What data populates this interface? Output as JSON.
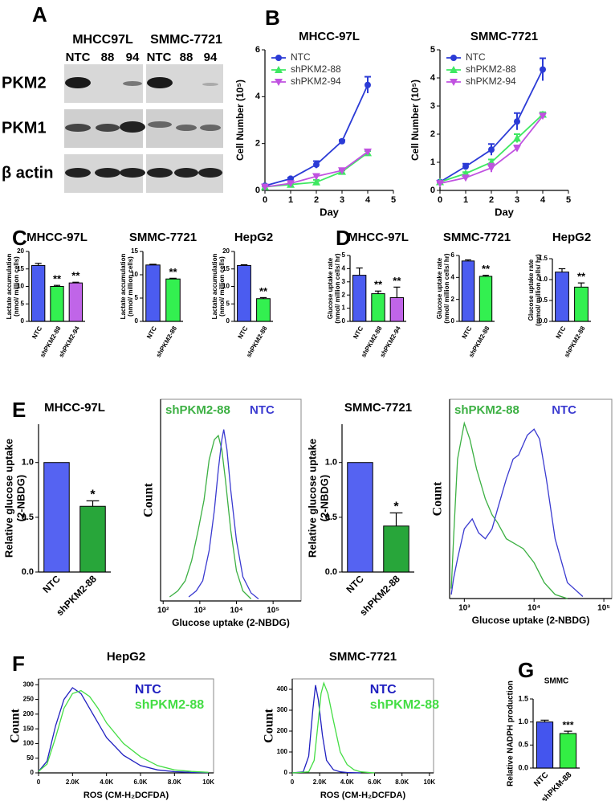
{
  "blot": {
    "panel": "A",
    "groups": [
      "MHCC97L",
      "SMMC-7721"
    ],
    "lanes": [
      [
        "NTC",
        "88",
        "94"
      ],
      [
        "NTC",
        "88",
        "94"
      ]
    ],
    "rows": [
      "PKM2",
      "PKM1",
      "β actin"
    ]
  },
  "chart_data": [
    {
      "type": "line",
      "panel": "B",
      "title": "MHCC-97L",
      "xlabel": "Day",
      "ylabel": [
        "Cell Number (10⁵)"
      ],
      "x": [
        0,
        1,
        2,
        3,
        4
      ],
      "xlim": [
        0,
        5
      ],
      "xticks": [
        0,
        1,
        2,
        3,
        4,
        5
      ],
      "ylim": [
        0,
        6
      ],
      "yticks": [
        0,
        2,
        4,
        6
      ],
      "markers": true,
      "legend": "upper-left",
      "series": [
        {
          "name": "NTC",
          "color": "#2b3bd6",
          "marker": "circle",
          "values": [
            0.2,
            0.5,
            1.1,
            2.1,
            4.5
          ],
          "errors": [
            0.05,
            0.05,
            0.15,
            0.05,
            0.35
          ]
        },
        {
          "name": "shPKM2-88",
          "color": "#3ee862",
          "marker": "triangle-up",
          "values": [
            0.15,
            0.25,
            0.35,
            0.8,
            1.6
          ],
          "errors": [
            0.03,
            0.05,
            0.1,
            0.05,
            0.08
          ]
        },
        {
          "name": "shPKM2-94",
          "color": "#c052e0",
          "marker": "triangle-down",
          "values": [
            0.15,
            0.3,
            0.6,
            0.85,
            1.65
          ],
          "errors": [
            0.03,
            0.05,
            0.1,
            0.05,
            0.08
          ]
        }
      ]
    },
    {
      "type": "line",
      "title": "SMMC-7721",
      "xlabel": "Day",
      "ylabel": [
        "Cell Number (10⁵)"
      ],
      "x": [
        0,
        1,
        2,
        3,
        4
      ],
      "xlim": [
        0,
        5
      ],
      "xticks": [
        0,
        1,
        2,
        3,
        4,
        5
      ],
      "ylim": [
        0,
        5
      ],
      "yticks": [
        0,
        1,
        2,
        3,
        4,
        5
      ],
      "markers": true,
      "legend": "upper-left",
      "series": [
        {
          "name": "NTC",
          "color": "#2b3bd6",
          "marker": "circle",
          "values": [
            0.3,
            0.85,
            1.45,
            2.45,
            4.3
          ],
          "errors": [
            0.05,
            0.1,
            0.2,
            0.3,
            0.4
          ]
        },
        {
          "name": "shPKM2-88",
          "color": "#3ee862",
          "marker": "triangle-up",
          "values": [
            0.3,
            0.6,
            1.0,
            1.85,
            2.7
          ],
          "errors": [
            0.03,
            0.05,
            0.1,
            0.15,
            0.08
          ]
        },
        {
          "name": "shPKM2-94",
          "color": "#c052e0",
          "marker": "triangle-down",
          "values": [
            0.25,
            0.45,
            0.8,
            1.5,
            2.65
          ],
          "errors": [
            0.03,
            0.05,
            0.15,
            0.1,
            0.08
          ]
        }
      ]
    },
    {
      "type": "bar",
      "panel": "C",
      "title": "MHCC-97L",
      "ylabel": [
        "Lactate accumulation",
        "(nmol/ million cells)"
      ],
      "categories": [
        "NTC",
        "shPKM2-88",
        "shPKM2-94"
      ],
      "values": [
        16,
        10,
        11
      ],
      "errors": [
        0.6,
        0.3,
        0.2
      ],
      "annotations": [
        null,
        "**",
        "**"
      ],
      "colors": [
        "#4b5cf0",
        "#33f050",
        "#c065e8"
      ],
      "ylim": [
        0,
        20
      ],
      "yticks": [
        0,
        5,
        10,
        15,
        20
      ]
    },
    {
      "type": "bar",
      "title": "SMMC-7721",
      "ylabel": [
        "Lactate accumulation",
        "(nmol/ million cells)"
      ],
      "categories": [
        "NTC",
        "shPKM2-88"
      ],
      "values": [
        12.1,
        9.1
      ],
      "errors": [
        0.15,
        0.15
      ],
      "annotations": [
        null,
        "**"
      ],
      "colors": [
        "#4b5cf0",
        "#33f050"
      ],
      "ylim": [
        0,
        15
      ],
      "yticks": [
        0,
        5,
        10,
        15
      ]
    },
    {
      "type": "bar",
      "title": "HepG2",
      "ylabel": [
        "Lactate accumulation",
        "(nmol/ million cells)"
      ],
      "categories": [
        "NTC",
        "shPKM2-88"
      ],
      "values": [
        16,
        6.5
      ],
      "errors": [
        0.2,
        0.3
      ],
      "annotations": [
        null,
        "**"
      ],
      "colors": [
        "#4b5cf0",
        "#33f050"
      ],
      "ylim": [
        0,
        20
      ],
      "yticks": [
        0,
        5,
        10,
        15,
        20
      ]
    },
    {
      "type": "bar",
      "panel": "D",
      "title": "MHCC-97L",
      "ylabel": [
        "Glucose uptake rate",
        "(nmol/ million cells/ hr)"
      ],
      "categories": [
        "NTC",
        "shPKM2-88",
        "shPKM2-94"
      ],
      "values": [
        3.5,
        2.1,
        1.8
      ],
      "errors": [
        0.55,
        0.2,
        0.8
      ],
      "annotations": [
        null,
        "**",
        "**"
      ],
      "colors": [
        "#4b5cf0",
        "#33f050",
        "#c065e8"
      ],
      "ylim": [
        0,
        5
      ],
      "yticks": [
        0,
        1,
        2,
        3,
        4,
        5
      ]
    },
    {
      "type": "bar",
      "title": "SMMC-7721",
      "ylabel": [
        "Glucose uptake rate",
        "(nmol/ million cells/ hr)"
      ],
      "categories": [
        "NTC",
        "shPKM2-88"
      ],
      "values": [
        5.5,
        4.1
      ],
      "errors": [
        0.1,
        0.1
      ],
      "annotations": [
        null,
        "**"
      ],
      "colors": [
        "#4b5cf0",
        "#33f050"
      ],
      "ylim": [
        0,
        6
      ],
      "yticks": [
        0,
        2,
        4,
        6
      ]
    },
    {
      "type": "bar",
      "title": "HepG2",
      "ylabel": [
        "Glucose uptake rate",
        "(mmol/ million cells/ hr)"
      ],
      "categories": [
        "NTC",
        "shPKM2-88"
      ],
      "values": [
        1.18,
        0.82
      ],
      "errors": [
        0.08,
        0.1
      ],
      "annotations": [
        null,
        "**"
      ],
      "colors": [
        "#4b5cf0",
        "#33f050"
      ],
      "ylim": [
        0,
        1.5
      ],
      "yticks": [
        {
          "value": 0,
          "label": "0.0"
        },
        0.5,
        {
          "value": 1,
          "label": "1.0"
        },
        1.5
      ]
    },
    {
      "type": "bar",
      "panel": "E",
      "title": "MHCC-97L",
      "ylabel": [
        "Relative glucose uptake",
        "(2-NBDG)"
      ],
      "categories": [
        "NTC",
        "shPKM2-88"
      ],
      "values": [
        1,
        0.6
      ],
      "errors": [
        null,
        0.05
      ],
      "annotations": [
        null,
        "*"
      ],
      "colors": [
        "#5563f2",
        "#28a63a"
      ],
      "ylim": [
        0,
        1.35
      ],
      "yticks": [
        {
          "value": 0,
          "label": "0.0"
        },
        0.5,
        {
          "value": 1,
          "label": "1.0"
        }
      ]
    },
    {
      "type": "line",
      "xlabel": "Glucose uptake (2-NBDG)",
      "ylabel": [
        "Count"
      ],
      "xscale": "log",
      "xlim": [
        85,
        580000
      ],
      "xticks": [
        {
          "value": 100,
          "label": "10²"
        },
        {
          "value": 1000,
          "label": "10³"
        },
        {
          "value": 10000,
          "label": "10⁴"
        },
        {
          "value": 100000,
          "label": "10⁵"
        }
      ],
      "ylim": [
        0,
        100
      ],
      "frame": true,
      "markers": false,
      "legend": "names-row",
      "series": [
        {
          "name": "shPKM2-88",
          "color": "#3cb043",
          "x": [
            150,
            250,
            400,
            600,
            900,
            1300,
            1800,
            2500,
            3200,
            4000,
            5000,
            7000,
            10000,
            15000,
            25000
          ],
          "values": [
            2,
            5,
            10,
            20,
            35,
            50,
            70,
            80,
            82,
            75,
            60,
            35,
            15,
            5,
            1
          ]
        },
        {
          "name": "NTC",
          "color": "#3a3ad0",
          "x": [
            500,
            800,
            1200,
            1800,
            2500,
            3200,
            4000,
            4500,
            5500,
            7000,
            10000,
            15000,
            25000,
            40000
          ],
          "values": [
            2,
            5,
            10,
            25,
            45,
            65,
            80,
            85,
            75,
            55,
            30,
            12,
            4,
            1
          ]
        }
      ]
    },
    {
      "type": "bar",
      "title": "SMMC-7721",
      "ylabel": [
        "Relative glucose uptake",
        "(2-NBDG)"
      ],
      "categories": [
        "NTC",
        "shPKM2-88"
      ],
      "values": [
        1,
        0.42
      ],
      "errors": [
        null,
        0.12
      ],
      "annotations": [
        null,
        "*"
      ],
      "colors": [
        "#5563f2",
        "#28a63a"
      ],
      "ylim": [
        0,
        1.35
      ],
      "yticks": [
        {
          "value": 0,
          "label": "0.0"
        },
        0.5,
        {
          "value": 1,
          "label": "1.0"
        }
      ]
    },
    {
      "type": "line",
      "xlabel": "Glucose uptake (2-NBDG)",
      "ylabel": [
        "Count"
      ],
      "xscale": "log",
      "xlim": [
        615,
        130000
      ],
      "xticks": [
        {
          "value": 1000,
          "label": "10³"
        },
        {
          "value": 10000,
          "label": "10⁴"
        },
        {
          "value": 100000,
          "label": "10⁵"
        }
      ],
      "ylim": [
        0,
        100
      ],
      "frame": true,
      "markers": false,
      "legend": "names-row",
      "series": [
        {
          "name": "shPKM2-88",
          "color": "#3cb043",
          "x": [
            650,
            700,
            800,
            1000,
            1200,
            1500,
            2000,
            2500,
            3000,
            4000,
            5000,
            7000,
            10000,
            14000,
            20000,
            30000
          ],
          "values": [
            5,
            30,
            70,
            88,
            80,
            65,
            50,
            42,
            38,
            30,
            28,
            25,
            18,
            8,
            2,
            0
          ]
        },
        {
          "name": "NTC",
          "color": "#3a3ad0",
          "x": [
            650,
            700,
            800,
            1000,
            1300,
            1600,
            2000,
            2500,
            3000,
            4000,
            5000,
            6000,
            8000,
            10000,
            12000,
            15000,
            20000,
            30000,
            50000
          ],
          "values": [
            2,
            10,
            20,
            35,
            40,
            33,
            30,
            35,
            45,
            60,
            70,
            72,
            82,
            85,
            80,
            60,
            30,
            8,
            1
          ]
        }
      ]
    },
    {
      "type": "line",
      "panel": "F",
      "title": "HepG2",
      "xlabel": "ROS (CM-H₂DCFDA)",
      "ylabel": [
        "Count"
      ],
      "xlim": [
        0,
        10300
      ],
      "xticks": [
        0,
        {
          "value": 2000,
          "label": "2.0K"
        },
        {
          "value": 4000,
          "label": "4.0K"
        },
        {
          "value": 6000,
          "label": "6.0K"
        },
        {
          "value": 8000,
          "label": "8.0K"
        },
        {
          "value": 10000,
          "label": "10K"
        }
      ],
      "ylim": [
        0,
        320
      ],
      "yticks": [
        0,
        50,
        100,
        150,
        200,
        250,
        300
      ],
      "frame": true,
      "markers": false,
      "legend": "stacked",
      "series": [
        {
          "name": "NTC",
          "color": "#2020c0",
          "x": [
            0,
            500,
            1000,
            1500,
            2000,
            2500,
            3000,
            3500,
            4000,
            5000,
            6000,
            7000,
            8000,
            9000,
            10000
          ],
          "values": [
            5,
            40,
            160,
            250,
            290,
            270,
            220,
            170,
            120,
            60,
            25,
            10,
            4,
            2,
            1
          ]
        },
        {
          "name": "shPKM2-88",
          "color": "#44dd44",
          "x": [
            0,
            500,
            1000,
            1500,
            2000,
            2500,
            3000,
            3500,
            4000,
            5000,
            6000,
            7000,
            8000,
            9000,
            10000
          ],
          "values": [
            5,
            30,
            120,
            220,
            270,
            280,
            260,
            220,
            170,
            100,
            55,
            25,
            10,
            5,
            2
          ]
        }
      ]
    },
    {
      "type": "line",
      "title": "SMMC-7721",
      "xlabel": "ROS (CM-H₂DCFDA)",
      "ylabel": [
        "Count"
      ],
      "xlim": [
        0,
        10300
      ],
      "xticks": [
        0,
        {
          "value": 2000,
          "label": "2.0K"
        },
        {
          "value": 4000,
          "label": "4.0K"
        },
        {
          "value": 6000,
          "label": "6.0K"
        },
        {
          "value": 8000,
          "label": "8.0K"
        },
        {
          "value": 10000,
          "label": "10K"
        }
      ],
      "ylim": [
        0,
        450
      ],
      "yticks": [
        0,
        100,
        200,
        300,
        400
      ],
      "frame": true,
      "markers": false,
      "legend": "stacked",
      "series": [
        {
          "name": "NTC",
          "color": "#2020c0",
          "x": [
            0,
            800,
            1200,
            1500,
            1700,
            1900,
            2200,
            2500,
            3000,
            3500,
            4000,
            5000
          ],
          "values": [
            0,
            5,
            80,
            300,
            420,
            350,
            180,
            60,
            15,
            5,
            2,
            0
          ]
        },
        {
          "name": "shPKM2-88",
          "color": "#44dd44",
          "x": [
            0,
            1200,
            1600,
            1900,
            2100,
            2300,
            2600,
            3000,
            3500,
            4000,
            4500,
            5000,
            6000
          ],
          "values": [
            0,
            5,
            60,
            250,
            380,
            430,
            380,
            250,
            100,
            40,
            15,
            5,
            0
          ]
        }
      ]
    },
    {
      "type": "bar",
      "panel": "G",
      "title": "SMMC",
      "ylabel": [
        "Relative NADPH production"
      ],
      "categories": [
        "NTC",
        "shPKM-88"
      ],
      "values": [
        1.0,
        0.75
      ],
      "errors": [
        0.04,
        0.05
      ],
      "annotations": [
        null,
        "***"
      ],
      "colors": [
        "#4455ee",
        "#33ee44"
      ],
      "ylim": [
        0,
        1.5
      ],
      "yticks": [
        {
          "value": 0,
          "label": "0.0"
        },
        0.5,
        {
          "value": 1,
          "label": "1.0"
        },
        1.5
      ]
    }
  ]
}
